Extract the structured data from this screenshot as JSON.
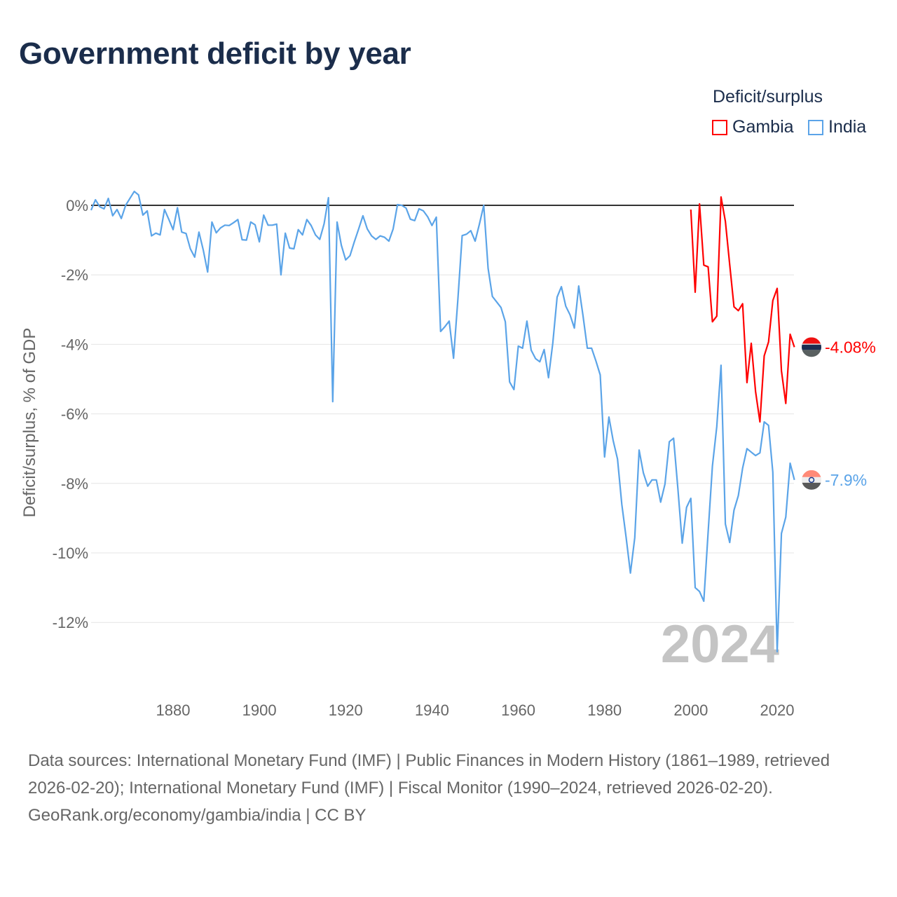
{
  "title": "Government deficit by year",
  "legend": {
    "title": "Deficit/surplus",
    "items": [
      {
        "name": "Gambia",
        "color": "#ff0000"
      },
      {
        "name": "India",
        "color": "#5ba4e8"
      }
    ]
  },
  "watermark_year": "2024",
  "footer": {
    "sources": "Data sources: International Monetary Fund (IMF) | Public Finances in Modern History (1861–1989, retrieved 2026-02-20); International Monetary Fund (IMF) | Fiscal Monitor (1990–2024, retrieved 2026-02-20).",
    "credit": "GeoRank.org/economy/gambia/india | CC BY"
  },
  "chart_data": {
    "type": "line",
    "title": "Government deficit by year",
    "xlabel": "",
    "ylabel": "Deficit/surplus, % of GDP",
    "xlim": [
      1861,
      2024
    ],
    "ylim": [
      -13,
      0.5
    ],
    "x_ticks": [
      1880,
      1900,
      1920,
      1940,
      1960,
      1980,
      2000,
      2020
    ],
    "y_ticks": [
      0,
      -2,
      -4,
      -6,
      -8,
      -10,
      -12
    ],
    "y_tick_labels": [
      "0%",
      "-2%",
      "-4%",
      "-6%",
      "-8%",
      "-10%",
      "-12%"
    ],
    "grid": true,
    "legend_position": "top-right",
    "series": [
      {
        "name": "Gambia",
        "color": "#ff0000",
        "start_year": 2000,
        "end_label": "-4.08%",
        "values": [
          -0.12,
          -2.5,
          0.04,
          -1.72,
          -1.77,
          -3.35,
          -3.19,
          0.24,
          -0.46,
          -1.71,
          -2.92,
          -3.03,
          -2.83,
          -5.1,
          -3.97,
          -5.36,
          -6.23,
          -4.33,
          -3.93,
          -2.74,
          -2.39,
          -4.76,
          -5.7,
          -3.71,
          -4.08
        ]
      },
      {
        "name": "India",
        "color": "#5ba4e8",
        "start_year": 1861,
        "end_label": "-7.9%",
        "values": [
          -0.14,
          0.16,
          -0.04,
          -0.1,
          0.2,
          -0.3,
          -0.12,
          -0.38,
          0,
          0.2,
          0.4,
          0.3,
          -0.28,
          -0.16,
          -0.88,
          -0.8,
          -0.85,
          -0.12,
          -0.4,
          -0.7,
          -0.07,
          -0.77,
          -0.81,
          -1.25,
          -1.49,
          -0.77,
          -1.29,
          -1.92,
          -0.48,
          -0.79,
          -0.65,
          -0.57,
          -0.58,
          -0.5,
          -0.41,
          -0.99,
          -1.0,
          -0.48,
          -0.56,
          -1.05,
          -0.28,
          -0.57,
          -0.57,
          -0.54,
          -2.0,
          -0.8,
          -1.23,
          -1.25,
          -0.7,
          -0.85,
          -0.41,
          -0.58,
          -0.85,
          -0.98,
          -0.53,
          0.22,
          -5.65,
          -0.48,
          -1.15,
          -1.57,
          -1.45,
          -1.05,
          -0.68,
          -0.3,
          -0.68,
          -0.88,
          -0.98,
          -0.88,
          -0.92,
          -1.03,
          -0.68,
          0.02,
          0,
          -0.08,
          -0.4,
          -0.44,
          -0.1,
          -0.16,
          -0.33,
          -0.58,
          -0.34,
          -3.63,
          -3.49,
          -3.33,
          -4.4,
          -2.7,
          -0.87,
          -0.83,
          -0.73,
          -1.03,
          -0.54,
          0,
          -1.81,
          -2.62,
          -2.78,
          -2.94,
          -3.35,
          -5.08,
          -5.3,
          -4.05,
          -4.11,
          -3.33,
          -4.17,
          -4.41,
          -4.5,
          -4.15,
          -4.96,
          -3.97,
          -2.64,
          -2.34,
          -2.9,
          -3.15,
          -3.53,
          -2.32,
          -3.17,
          -4.11,
          -4.11,
          -4.48,
          -4.88,
          -7.24,
          -6.09,
          -6.77,
          -7.3,
          -8.6,
          -9.56,
          -10.58,
          -9.56,
          -7.04,
          -7.7,
          -8.08,
          -7.9,
          -7.9,
          -8.54,
          -8.02,
          -6.8,
          -6.7,
          -8.17,
          -9.72,
          -8.69,
          -8.43,
          -11.0,
          -11.11,
          -11.39,
          -9.4,
          -7.5,
          -6.37,
          -4.6,
          -9.17,
          -9.7,
          -8.77,
          -8.35,
          -7.56,
          -7.0,
          -7.1,
          -7.2,
          -7.12,
          -6.23,
          -6.33,
          -7.68,
          -12.84,
          -9.44,
          -8.97,
          -7.42,
          -7.9
        ]
      }
    ]
  }
}
